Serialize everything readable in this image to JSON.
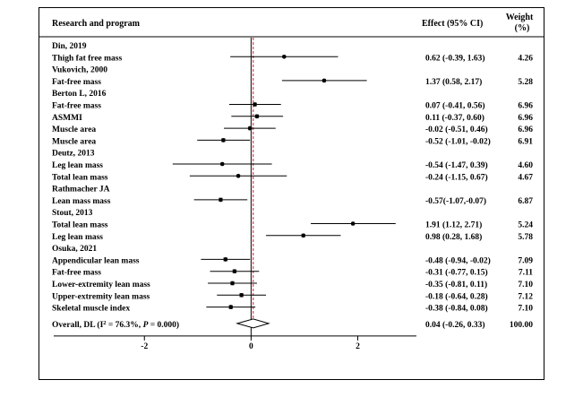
{
  "header": {
    "col_study": "Research and program",
    "col_effect": "Effect (95% CI)",
    "col_weight_line1": "Weight",
    "col_weight_line2": "(%)"
  },
  "chart_data": {
    "type": "forest",
    "xlim": [
      -3.7,
      3.1
    ],
    "xticks": [
      -2,
      0,
      2
    ],
    "reference_line": 0,
    "overall_line": 0.04,
    "rows": [
      {
        "kind": "group",
        "label": "Din, 2019"
      },
      {
        "kind": "study",
        "label": "Thigh fat free mass",
        "est": 0.62,
        "lo": -0.39,
        "hi": 1.63,
        "ci_text": "0.62 (-0.39, 1.63)",
        "weight": "4.26"
      },
      {
        "kind": "group",
        "label": "Vukovich, 2000"
      },
      {
        "kind": "study",
        "label": "Fat-free mass",
        "est": 1.37,
        "lo": 0.58,
        "hi": 2.17,
        "ci_text": "1.37 (0.58, 2.17)",
        "weight": "5.28"
      },
      {
        "kind": "group",
        "label": "Berton L, 2016"
      },
      {
        "kind": "study",
        "label": "Fat-free mass",
        "est": 0.07,
        "lo": -0.41,
        "hi": 0.56,
        "ci_text": "0.07 (-0.41, 0.56)",
        "weight": "6.96"
      },
      {
        "kind": "study",
        "label": "ASMMI",
        "est": 0.11,
        "lo": -0.37,
        "hi": 0.6,
        "ci_text": "0.11 (-0.37, 0.60)",
        "weight": "6.96"
      },
      {
        "kind": "study",
        "label": "Muscle area",
        "est": -0.02,
        "lo": -0.51,
        "hi": 0.46,
        "ci_text": "-0.02 (-0.51, 0.46)",
        "weight": "6.96"
      },
      {
        "kind": "study",
        "label": "Muscle area",
        "est": -0.52,
        "lo": -1.01,
        "hi": -0.02,
        "ci_text": "-0.52 (-1.01, -0.02)",
        "weight": "6.91"
      },
      {
        "kind": "group",
        "label": "Deutz, 2013"
      },
      {
        "kind": "study",
        "label": "Leg lean mass",
        "est": -0.54,
        "lo": -1.47,
        "hi": 0.39,
        "ci_text": "-0.54 (-1.47, 0.39)",
        "weight": "4.60"
      },
      {
        "kind": "study",
        "label": "Total lean mass",
        "est": -0.24,
        "lo": -1.15,
        "hi": 0.67,
        "ci_text": "-0.24 (-1.15, 0.67)",
        "weight": "4.67"
      },
      {
        "kind": "group",
        "label": "Rathmacher JA"
      },
      {
        "kind": "study",
        "label": "Lean mass mass",
        "est": -0.57,
        "lo": -1.07,
        "hi": -0.07,
        "ci_text": "-0.57(-1.07,-0.07)",
        "weight": "6.87"
      },
      {
        "kind": "group",
        "label": "Stout, 2013"
      },
      {
        "kind": "study",
        "label": "Total lean mass",
        "est": 1.91,
        "lo": 1.12,
        "hi": 2.71,
        "ci_text": "1.91 (1.12, 2.71)",
        "weight": "5.24"
      },
      {
        "kind": "study",
        "label": "Leg lean mass",
        "est": 0.98,
        "lo": 0.28,
        "hi": 1.68,
        "ci_text": "0.98 (0.28, 1.68)",
        "weight": "5.78"
      },
      {
        "kind": "group",
        "label": "Osuka, 2021"
      },
      {
        "kind": "study",
        "label": "Appendicular lean mass",
        "est": -0.48,
        "lo": -0.94,
        "hi": -0.02,
        "ci_text": "-0.48 (-0.94, -0.02)",
        "weight": "7.09"
      },
      {
        "kind": "study",
        "label": "Fat-free mass",
        "est": -0.31,
        "lo": -0.77,
        "hi": 0.15,
        "ci_text": "-0.31 (-0.77, 0.15)",
        "weight": "7.11"
      },
      {
        "kind": "study",
        "label": "Lower-extremity lean mass",
        "est": -0.35,
        "lo": -0.81,
        "hi": 0.11,
        "ci_text": "-0.35 (-0.81, 0.11)",
        "weight": "7.10"
      },
      {
        "kind": "study",
        "label": "Upper-extremity lean mass",
        "est": -0.18,
        "lo": -0.64,
        "hi": 0.28,
        "ci_text": "-0.18 (-0.64, 0.28)",
        "weight": "7.12"
      },
      {
        "kind": "study",
        "label": "Skeletal muscle index",
        "est": -0.38,
        "lo": -0.84,
        "hi": 0.08,
        "ci_text": "-0.38 (-0.84, 0.08)",
        "weight": "7.10"
      }
    ],
    "overall": {
      "label_prefix": "Overall, DL (I",
      "label_sup": "2",
      "label_mid": " = 76.3%, ",
      "label_p": "P",
      "label_suffix": " = 0.000)",
      "est": 0.04,
      "lo": -0.26,
      "hi": 0.33,
      "ci_text": "0.04 (-0.26, 0.33)",
      "weight": "100.00"
    }
  }
}
